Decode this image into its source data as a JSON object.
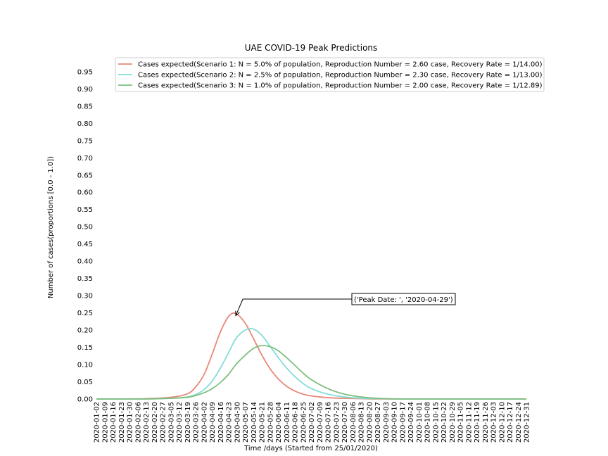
{
  "chart_data": {
    "type": "line",
    "title": "UAE COVID-19 Peak Predictions",
    "xlabel": "Time /days (Started from 25/01/2020)",
    "ylabel": "Number of cases(proportions [0.0 - 1.0])",
    "ylim": [
      0.0,
      1.0
    ],
    "y_ticks": [
      "0.00",
      "0.05",
      "0.10",
      "0.15",
      "0.20",
      "0.25",
      "0.30",
      "0.35",
      "0.40",
      "0.45",
      "0.50",
      "0.55",
      "0.60",
      "0.65",
      "0.70",
      "0.75",
      "0.80",
      "0.85",
      "0.90",
      "0.95"
    ],
    "x_tick_labels": [
      "2020-01-02",
      "2020-01-09",
      "2020-01-16",
      "2020-01-23",
      "2020-01-30",
      "2020-02-06",
      "2020-02-13",
      "2020-02-20",
      "2020-02-27",
      "2020-03-05",
      "2020-03-12",
      "2020-03-19",
      "2020-03-26",
      "2020-04-02",
      "2020-04-09",
      "2020-04-16",
      "2020-04-23",
      "2020-04-30",
      "2020-05-07",
      "2020-05-14",
      "2020-05-21",
      "2020-05-28",
      "2020-06-04",
      "2020-06-11",
      "2020-06-18",
      "2020-06-25",
      "2020-07-02",
      "2020-07-09",
      "2020-07-16",
      "2020-07-23",
      "2020-07-30",
      "2020-08-06",
      "2020-08-13",
      "2020-08-20",
      "2020-08-27",
      "2020-09-03",
      "2020-09-10",
      "2020-09-17",
      "2020-09-24",
      "2020-10-01",
      "2020-10-08",
      "2020-10-15",
      "2020-10-22",
      "2020-10-29",
      "2020-11-05",
      "2020-11-12",
      "2020-11-19",
      "2020-11-26",
      "2020-12-03",
      "2020-12-10",
      "2020-12-17",
      "2020-12-24",
      "2020-12-31"
    ],
    "grid": false,
    "legend_position": "top-right",
    "x": [
      "2020-01-02",
      "2020-02-13",
      "2020-03-05",
      "2020-03-19",
      "2020-03-26",
      "2020-04-02",
      "2020-04-09",
      "2020-04-16",
      "2020-04-23",
      "2020-04-29",
      "2020-05-07",
      "2020-05-14",
      "2020-05-21",
      "2020-05-28",
      "2020-06-04",
      "2020-06-11",
      "2020-06-18",
      "2020-06-25",
      "2020-07-02",
      "2020-07-16",
      "2020-07-30",
      "2020-08-13",
      "2020-08-27",
      "2020-09-17",
      "2020-10-08",
      "2020-11-05",
      "2020-12-31"
    ],
    "series": [
      {
        "name": "Cases expected(Scenario 1: N = 5.0% of population, Reproduction Number = 2.60 case, Recovery Rate = 1/14.00)",
        "color": "#e8877a",
        "values": [
          0.0,
          0.001,
          0.005,
          0.015,
          0.035,
          0.07,
          0.13,
          0.195,
          0.24,
          0.248,
          0.22,
          0.175,
          0.128,
          0.088,
          0.058,
          0.037,
          0.023,
          0.014,
          0.009,
          0.004,
          0.002,
          0.001,
          0.0,
          0.0,
          0.0,
          0.0,
          0.0
        ]
      },
      {
        "name": "Cases expected(Scenario 2: N = 2.5% of population, Reproduction Number = 2.30 case, Recovery Rate = 1/13.00)",
        "color": "#84dcd8",
        "values": [
          0.0,
          0.0,
          0.002,
          0.006,
          0.013,
          0.027,
          0.052,
          0.09,
          0.135,
          0.175,
          0.2,
          0.203,
          0.185,
          0.153,
          0.12,
          0.09,
          0.065,
          0.045,
          0.03,
          0.014,
          0.006,
          0.002,
          0.001,
          0.0,
          0.0,
          0.0,
          0.0
        ]
      },
      {
        "name": "Cases expected(Scenario 3: N = 1.0% of population, Reproduction Number = 2.00 case, Recovery Rate = 1/12.89)",
        "color": "#7fbf7f",
        "values": [
          0.0,
          0.0,
          0.002,
          0.005,
          0.01,
          0.018,
          0.03,
          0.048,
          0.072,
          0.1,
          0.127,
          0.147,
          0.155,
          0.152,
          0.14,
          0.12,
          0.098,
          0.075,
          0.056,
          0.03,
          0.014,
          0.006,
          0.002,
          0.0,
          0.0,
          0.0,
          0.0
        ]
      }
    ],
    "annotation": {
      "text": "('Peak Date: ', '2020-04-29')",
      "x": "2020-04-29",
      "y": 0.248
    }
  }
}
